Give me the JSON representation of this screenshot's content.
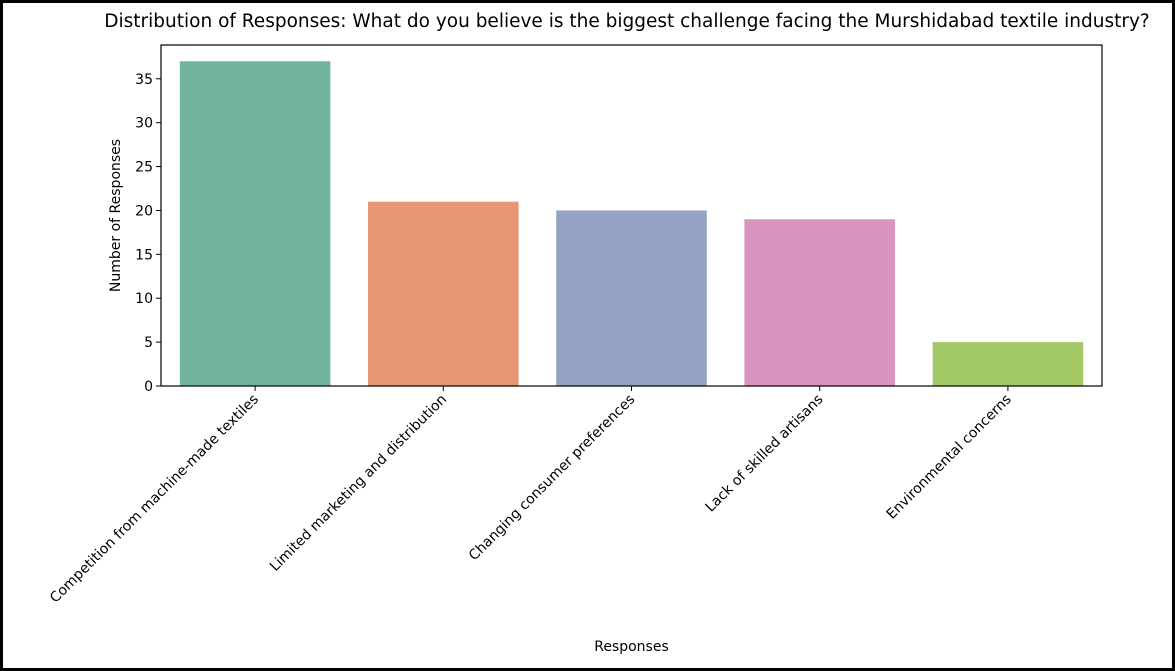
{
  "chart_data": {
    "type": "bar",
    "title": "Distribution of Responses: What do you believe is the biggest challenge facing the Murshidabad textile industry?",
    "xlabel": "Responses",
    "ylabel": "Number of Responses",
    "categories": [
      "Competition from machine-made textiles",
      "Limited marketing and distribution",
      "Changing consumer preferences",
      "Lack of skilled artisans",
      "Environmental concerns"
    ],
    "values": [
      37,
      21,
      20,
      19,
      5
    ],
    "colors": [
      "#72b49d",
      "#e69674",
      "#94a3c3",
      "#d994bf",
      "#a3c866"
    ],
    "ylim": [
      0,
      38.85
    ],
    "yticks": [
      0,
      5,
      10,
      15,
      20,
      25,
      30,
      35
    ],
    "grid": false,
    "legend": "none"
  }
}
